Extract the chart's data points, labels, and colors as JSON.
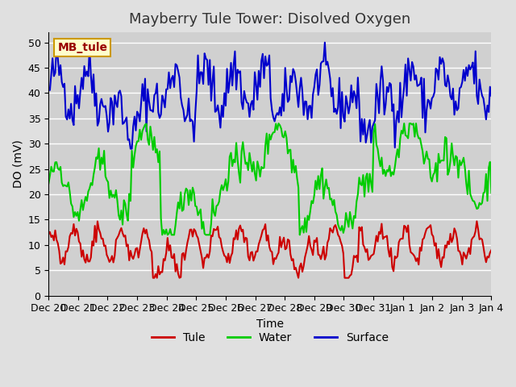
{
  "title": "Mayberry Tule Tower: Disolved Oxygen",
  "ylabel": "DO (mV)",
  "xlabel": "Time",
  "bg_color": "#e8e8e8",
  "plot_bg_color": "#d8d8d8",
  "ylim": [
    0,
    52
  ],
  "yticks": [
    0,
    5,
    10,
    15,
    20,
    25,
    30,
    35,
    40,
    45,
    50
  ],
  "x_labels": [
    "Dec 20",
    "Dec 21",
    "Dec 22",
    "Dec 23",
    "Dec 24",
    "Dec 25",
    "Dec 26",
    "Dec 27",
    "Dec 28",
    "Dec 29",
    "Dec 30",
    "Dec 31",
    "Jan 1",
    "Jan 2",
    "Jan 3",
    "Jan 4"
  ],
  "legend_labels": [
    "Tule",
    "Water",
    "Surface"
  ],
  "legend_colors": [
    "#cc0000",
    "#00cc00",
    "#0000cc"
  ],
  "mb_tule_box_color": "#ffffcc",
  "mb_tule_text_color": "#990000",
  "mb_tule_border_color": "#cc9900",
  "tule_color": "#cc0000",
  "water_color": "#00cc00",
  "surface_color": "#0000cc",
  "line_width": 1.5,
  "n_points": 336,
  "title_fontsize": 13,
  "axis_fontsize": 10,
  "tick_fontsize": 9
}
